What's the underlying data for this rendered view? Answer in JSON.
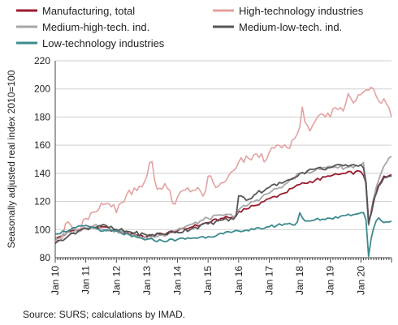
{
  "chart_data": {
    "type": "line",
    "ylabel": "Seasonally adjusted real index 2010=100",
    "ylim": [
      80,
      220
    ],
    "yticks": [
      80,
      100,
      120,
      140,
      160,
      180,
      200,
      220
    ],
    "xlim": [
      2010.0,
      2021.0
    ],
    "xticks": [
      "Jan 10",
      "Jan 11",
      "Jan 12",
      "Jan 13",
      "Jan 14",
      "Jan 15",
      "Jan 16",
      "Jan 17",
      "Jan 18",
      "Jan 19",
      "Jan 20"
    ],
    "grid": "horizontal",
    "legend": "top",
    "source": "Source: SURS; calculations by IMAD.",
    "series": [
      {
        "name": "Manufacturing, total",
        "color": "#9b1b30",
        "anchors": [
          [
            2010.0,
            93
          ],
          [
            2010.5,
            99
          ],
          [
            2011.0,
            101
          ],
          [
            2011.5,
            102
          ],
          [
            2012.0,
            99
          ],
          [
            2012.5,
            97
          ],
          [
            2013.0,
            95
          ],
          [
            2013.5,
            97
          ],
          [
            2014.0,
            99
          ],
          [
            2014.5,
            102
          ],
          [
            2015.0,
            105
          ],
          [
            2015.5,
            108
          ],
          [
            2015.9,
            109
          ],
          [
            2016.0,
            113
          ],
          [
            2016.5,
            117
          ],
          [
            2017.0,
            122
          ],
          [
            2017.5,
            126
          ],
          [
            2018.0,
            132
          ],
          [
            2018.5,
            135
          ],
          [
            2019.0,
            138
          ],
          [
            2019.5,
            140
          ],
          [
            2020.0,
            141
          ],
          [
            2020.15,
            138
          ],
          [
            2020.25,
            106
          ],
          [
            2020.35,
            112
          ],
          [
            2020.5,
            128
          ],
          [
            2020.75,
            138
          ],
          [
            2021.0,
            139
          ]
        ]
      },
      {
        "name": "High-technology industries",
        "color": "#e4a1a1",
        "anchors": [
          [
            2010.0,
            95
          ],
          [
            2010.2,
            92
          ],
          [
            2010.4,
            106
          ],
          [
            2010.6,
            100
          ],
          [
            2010.8,
            99
          ],
          [
            2011.0,
            108
          ],
          [
            2011.3,
            112
          ],
          [
            2011.6,
            118
          ],
          [
            2011.9,
            119
          ],
          [
            2012.0,
            112
          ],
          [
            2012.3,
            124
          ],
          [
            2012.6,
            130
          ],
          [
            2012.9,
            133
          ],
          [
            2013.0,
            138
          ],
          [
            2013.15,
            151
          ],
          [
            2013.3,
            128
          ],
          [
            2013.6,
            133
          ],
          [
            2013.9,
            117
          ],
          [
            2014.0,
            123
          ],
          [
            2014.3,
            130
          ],
          [
            2014.6,
            128
          ],
          [
            2014.9,
            125
          ],
          [
            2015.0,
            138
          ],
          [
            2015.3,
            130
          ],
          [
            2015.6,
            135
          ],
          [
            2015.9,
            143
          ],
          [
            2016.0,
            148
          ],
          [
            2016.3,
            150
          ],
          [
            2016.6,
            154
          ],
          [
            2016.9,
            149
          ],
          [
            2017.0,
            155
          ],
          [
            2017.3,
            160
          ],
          [
            2017.6,
            158
          ],
          [
            2017.9,
            167
          ],
          [
            2018.0,
            173
          ],
          [
            2018.1,
            190
          ],
          [
            2018.2,
            170
          ],
          [
            2018.5,
            177
          ],
          [
            2018.8,
            180
          ],
          [
            2019.0,
            180
          ],
          [
            2019.2,
            188
          ],
          [
            2019.4,
            183
          ],
          [
            2019.6,
            198
          ],
          [
            2019.8,
            191
          ],
          [
            2020.0,
            196
          ],
          [
            2020.2,
            200
          ],
          [
            2020.4,
            201
          ],
          [
            2020.55,
            191
          ],
          [
            2020.75,
            193
          ],
          [
            2020.9,
            188
          ],
          [
            2021.0,
            180
          ]
        ]
      },
      {
        "name": "Medium-high-tech. ind.",
        "color": "#a6a6a6",
        "anchors": [
          [
            2010.0,
            93
          ],
          [
            2010.5,
            98
          ],
          [
            2011.0,
            101
          ],
          [
            2011.3,
            104
          ],
          [
            2011.6,
            100
          ],
          [
            2012.0,
            99
          ],
          [
            2012.5,
            96
          ],
          [
            2013.0,
            94
          ],
          [
            2013.5,
            96
          ],
          [
            2014.0,
            100
          ],
          [
            2014.5,
            104
          ],
          [
            2015.0,
            108
          ],
          [
            2015.5,
            110
          ],
          [
            2015.9,
            110
          ],
          [
            2016.0,
            114
          ],
          [
            2016.5,
            120
          ],
          [
            2017.0,
            126
          ],
          [
            2017.5,
            132
          ],
          [
            2018.0,
            140
          ],
          [
            2018.5,
            142
          ],
          [
            2019.0,
            145
          ],
          [
            2019.5,
            144
          ],
          [
            2020.0,
            146
          ],
          [
            2020.1,
            148
          ],
          [
            2020.25,
            103
          ],
          [
            2020.35,
            115
          ],
          [
            2020.5,
            130
          ],
          [
            2020.75,
            145
          ],
          [
            2021.0,
            152
          ]
        ]
      },
      {
        "name": "Medium-low-tech. ind.",
        "color": "#555555",
        "anchors": [
          [
            2010.0,
            90
          ],
          [
            2010.5,
            97
          ],
          [
            2011.0,
            101
          ],
          [
            2011.5,
            103
          ],
          [
            2012.0,
            100
          ],
          [
            2012.5,
            98
          ],
          [
            2013.0,
            96
          ],
          [
            2013.5,
            97
          ],
          [
            2014.0,
            98
          ],
          [
            2014.5,
            101
          ],
          [
            2015.0,
            104
          ],
          [
            2015.5,
            107
          ],
          [
            2015.9,
            107
          ],
          [
            2016.0,
            124
          ],
          [
            2016.3,
            121
          ],
          [
            2016.6,
            126
          ],
          [
            2017.0,
            130
          ],
          [
            2017.5,
            134
          ],
          [
            2018.0,
            140
          ],
          [
            2018.5,
            143
          ],
          [
            2019.0,
            144
          ],
          [
            2019.5,
            146
          ],
          [
            2020.0,
            146
          ],
          [
            2020.15,
            140
          ],
          [
            2020.25,
            104
          ],
          [
            2020.4,
            120
          ],
          [
            2020.6,
            132
          ],
          [
            2020.8,
            137
          ],
          [
            2021.0,
            138
          ]
        ]
      },
      {
        "name": "Low-technology industries",
        "color": "#3d8a8e",
        "anchors": [
          [
            2010.0,
            97
          ],
          [
            2010.5,
            100
          ],
          [
            2011.0,
            103
          ],
          [
            2011.3,
            101
          ],
          [
            2011.6,
            99
          ],
          [
            2012.0,
            99
          ],
          [
            2012.5,
            95
          ],
          [
            2013.0,
            93
          ],
          [
            2013.5,
            92
          ],
          [
            2014.0,
            93
          ],
          [
            2014.5,
            94
          ],
          [
            2015.0,
            95
          ],
          [
            2015.5,
            97
          ],
          [
            2016.0,
            99
          ],
          [
            2016.5,
            100
          ],
          [
            2017.0,
            102
          ],
          [
            2017.5,
            104
          ],
          [
            2017.9,
            104
          ],
          [
            2018.0,
            112
          ],
          [
            2018.2,
            105
          ],
          [
            2018.5,
            107
          ],
          [
            2019.0,
            108
          ],
          [
            2019.5,
            110
          ],
          [
            2020.0,
            112
          ],
          [
            2020.15,
            112
          ],
          [
            2020.25,
            81
          ],
          [
            2020.35,
            96
          ],
          [
            2020.55,
            109
          ],
          [
            2020.75,
            105
          ],
          [
            2021.0,
            106
          ]
        ]
      }
    ]
  }
}
